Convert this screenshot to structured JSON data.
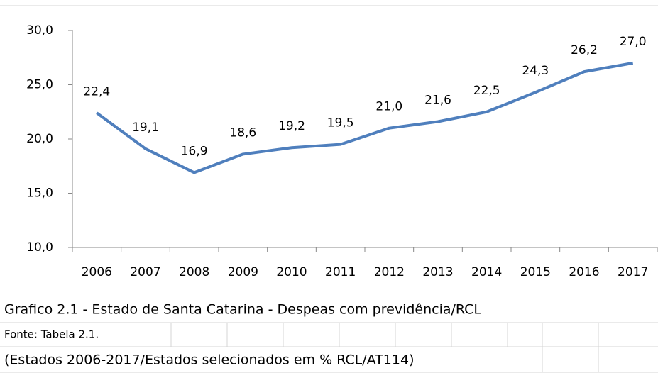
{
  "chart_data": {
    "type": "line",
    "categories": [
      "2006",
      "2007",
      "2008",
      "2009",
      "2010",
      "2011",
      "2012",
      "2013",
      "2014",
      "2015",
      "2016",
      "2017"
    ],
    "values": [
      22.4,
      19.1,
      16.9,
      18.6,
      19.2,
      19.5,
      21.0,
      21.6,
      22.5,
      24.3,
      26.2,
      27.0
    ],
    "value_labels": [
      "22,4",
      "19,1",
      "16,9",
      "18,6",
      "19,2",
      "19,5",
      "21,0",
      "21,6",
      "22,5",
      "24,3",
      "26,2",
      "27,0"
    ],
    "color": "#4f7fbd",
    "ylim": [
      10,
      30
    ],
    "yticks": [
      {
        "value": 10,
        "label": "10,0"
      },
      {
        "value": 15,
        "label": "15,0"
      },
      {
        "value": 20,
        "label": "20,0"
      },
      {
        "value": 25,
        "label": "25,0"
      },
      {
        "value": 30,
        "label": "30,0"
      }
    ],
    "caption": "Grafico 2.1 - Estado de Santa Catarina  - Despeas com previdência/RCL",
    "source": "Fonte: Tabela 2.1.",
    "note": "(Estados 2006-2017/Estados selecionados em % RCL/AT114)"
  }
}
